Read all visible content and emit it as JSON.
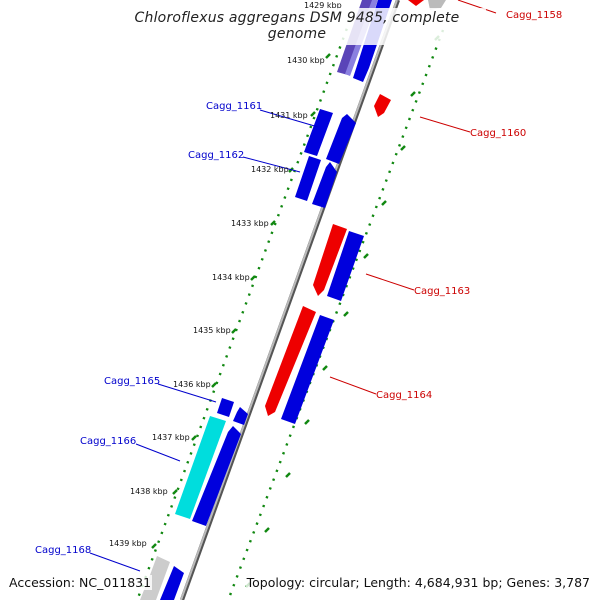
{
  "title": "Chloroflexus aggregans DSM 9485, complete genome",
  "footer": {
    "accession_label": "Accession:",
    "accession": "NC_011831",
    "topology_text": "Topology: circular; Length: 4,684,931 bp; Genes: 3,787"
  },
  "colors": {
    "forward_gene": "#0000dd",
    "reverse_gene": "#ee0000",
    "cyan_gene": "#00dddd",
    "grey_gene": "#c8c8c8",
    "backbone": "#888888",
    "dotted_guide": "#118811",
    "label_blue": "#0000cc",
    "label_red": "#cc0000"
  },
  "scale_labels": [
    "1429 kbp",
    "1430 kbp",
    "1431 kbp",
    "1432 kbp",
    "1433 kbp",
    "1434 kbp",
    "1435 kbp",
    "1436 kbp",
    "1437 kbp",
    "1438 kbp",
    "1439 kbp"
  ],
  "gene_labels": {
    "left": [
      "Cagg_1161",
      "Cagg_1162",
      "Cagg_1165",
      "Cagg_1166",
      "Cagg_1168"
    ],
    "right": [
      "Cagg_1158",
      "Cagg_1160",
      "Cagg_1163",
      "Cagg_1164"
    ]
  }
}
